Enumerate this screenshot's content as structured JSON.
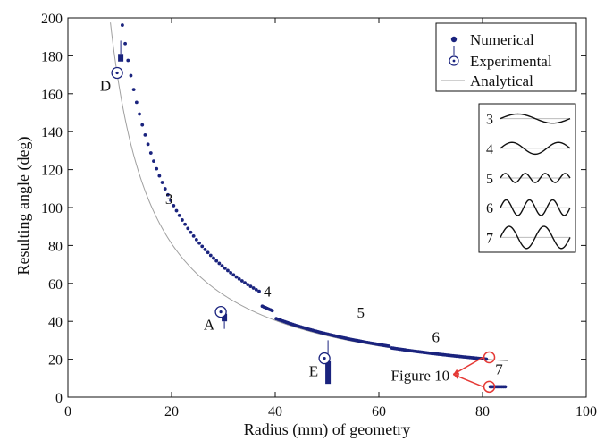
{
  "chart_data": {
    "type": "scatter",
    "title": "",
    "xlabel": "Radius (mm) of geometry",
    "ylabel": "Resulting angle (deg)",
    "xlim": [
      0,
      100
    ],
    "ylim": [
      0,
      200
    ],
    "xticks": [
      0,
      20,
      40,
      60,
      80,
      100
    ],
    "yticks": [
      0,
      20,
      40,
      60,
      80,
      100,
      120,
      140,
      160,
      180,
      200
    ],
    "grid": false,
    "legend_position": "top-right",
    "legend": [
      "Numerical",
      "Experimental",
      "Analytical"
    ],
    "colors": {
      "numerical": "#1a237e",
      "experimental": "#1a237e",
      "analytical": "#a0a0a0",
      "highlight": "#e53935",
      "inset_line": "#111111",
      "inset_baseline": "#bbbbbb"
    },
    "series": [
      {
        "name": "Numerical",
        "segments": [
          {
            "x_start": 10.5,
            "x_end": 37.0,
            "k": 2060
          },
          {
            "x_start": 37.5,
            "x_end": 39.7,
            "k": 1800
          },
          {
            "x_start": 40.2,
            "x_end": 62.0,
            "k": 1665
          },
          {
            "x_start": 62.5,
            "x_end": 81.0,
            "k": 1620
          },
          {
            "x_start": 81.5,
            "x_end": 84.5,
            "y_const": 5.5
          }
        ]
      },
      {
        "name": "Experimental",
        "points": [
          {
            "label": "D",
            "x": 9.5,
            "y": 171,
            "bar_low": 177,
            "bar_high": 181,
            "whisker_top": 188
          },
          {
            "label": "A",
            "x": 29.5,
            "y": 45,
            "bar_low": 40,
            "bar_high": 44,
            "whisker_bottom": 36
          },
          {
            "label": "E",
            "x": 49.5,
            "y": 20.5,
            "bar_low": 7,
            "bar_high": 19,
            "whisker_top": 30
          }
        ]
      },
      {
        "name": "Analytical",
        "function": "y = 1620 / x",
        "x_start": 8.2,
        "x_end": 85
      }
    ],
    "mode_labels": [
      {
        "text": "3",
        "x": 19.5,
        "y": 102
      },
      {
        "text": "4",
        "x": 38.5,
        "y": 53
      },
      {
        "text": "5",
        "x": 56.5,
        "y": 42
      },
      {
        "text": "6",
        "x": 71.0,
        "y": 29
      },
      {
        "text": "7",
        "x": 83.2,
        "y": 12
      }
    ],
    "highlighted_points": [
      {
        "x": 81.3,
        "y": 21
      },
      {
        "x": 81.3,
        "y": 5.5
      }
    ],
    "figure_ref": {
      "text": "Figure 10",
      "x": 74,
      "y": 12
    },
    "inset": {
      "rows": [
        {
          "label": "3",
          "waves": 1,
          "amp": 0.35
        },
        {
          "label": "4",
          "waves": 1.5,
          "amp": 0.45
        },
        {
          "label": "5",
          "waves": 3.5,
          "amp": 0.35
        },
        {
          "label": "6",
          "waves": 3,
          "amp": 0.6
        },
        {
          "label": "7",
          "waves": 2,
          "amp": 0.85
        }
      ]
    }
  }
}
